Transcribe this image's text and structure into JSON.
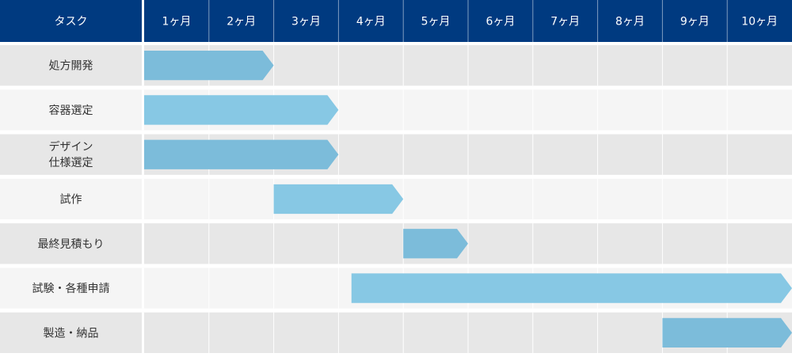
{
  "chart_data": {
    "type": "gantt",
    "header": {
      "task_column_label": "タスク",
      "months": [
        "1ヶ月",
        "2ヶ月",
        "3ヶ月",
        "4ヶ月",
        "5ヶ月",
        "6ヶ月",
        "7ヶ月",
        "8ヶ月",
        "9ヶ月",
        "10ヶ月"
      ]
    },
    "tasks": [
      {
        "label": [
          "処方開発"
        ],
        "start": 0,
        "end": 2
      },
      {
        "label": [
          "容器選定"
        ],
        "start": 0,
        "end": 3
      },
      {
        "label": [
          "デザイン",
          "仕様選定"
        ],
        "start": 0,
        "end": 3
      },
      {
        "label": [
          "試作"
        ],
        "start": 2,
        "end": 4
      },
      {
        "label": [
          "最終見積もり"
        ],
        "start": 4,
        "end": 5
      },
      {
        "label": [
          "試験・各種申請"
        ],
        "start": 3.2,
        "end": 10
      },
      {
        "label": [
          "製造・納品"
        ],
        "start": 8,
        "end": 10
      }
    ],
    "colors": {
      "header_bg": "#003a80",
      "row_odd": "#e7e7e7",
      "row_even": "#f5f5f5",
      "bar_dark": "#7cbcda",
      "bar_light": "#87c8e4",
      "grid_line": "#ffffff"
    }
  }
}
